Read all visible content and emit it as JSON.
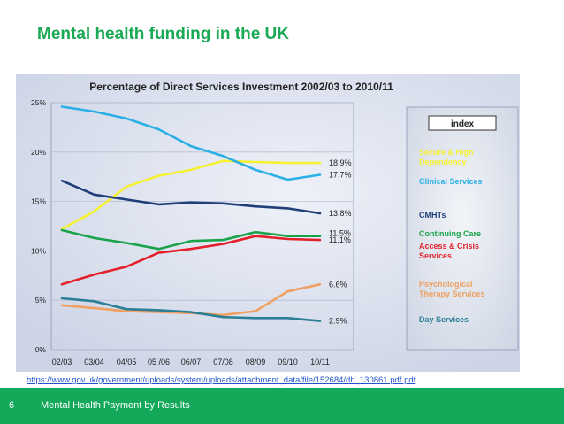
{
  "slide": {
    "title": "Mental health funding in the UK",
    "source_url": "https://www.gov.uk/government/uploads/system/uploads/attachment_data/file/152684/dh_130861.pdf.pdf",
    "page_number": "6",
    "footer_text": "Mental Health Payment by Results"
  },
  "chart_data": {
    "type": "line",
    "title": "Percentage of Direct Services Investment 2002/03 to 2010/11",
    "xlabel": "",
    "ylabel": "",
    "categories": [
      "02/03",
      "03/04",
      "04/05",
      "05 /06",
      "06/07",
      "07/08",
      "08/09",
      "09/10",
      "10/11"
    ],
    "ylim": [
      0,
      25
    ],
    "yticks": [
      "0%",
      "5%",
      "10%",
      "15%",
      "20%",
      "25%"
    ],
    "ytick_values": [
      0,
      5,
      10,
      15,
      20,
      25
    ],
    "legend_title": "index",
    "legend_position": "right",
    "series": [
      {
        "name": "Secure & High Dependency",
        "color": "#f5f032",
        "values": [
          12.2,
          14.0,
          16.5,
          17.6,
          18.2,
          19.1,
          19.0,
          18.9,
          18.9
        ],
        "end_label": "18.9%"
      },
      {
        "name": "Clinical Services",
        "color": "#2ab0e6",
        "values": [
          24.6,
          24.1,
          23.4,
          22.3,
          20.6,
          19.6,
          18.2,
          17.2,
          17.7
        ],
        "end_label": "17.7%"
      },
      {
        "name": "CMHTs",
        "color": "#1f3f7a",
        "values": [
          17.1,
          15.7,
          15.2,
          14.7,
          14.9,
          14.8,
          14.5,
          14.3,
          13.8
        ],
        "end_label": "13.8%"
      },
      {
        "name": "Continuing Care",
        "color": "#1aa34a",
        "values": [
          12.1,
          11.3,
          10.8,
          10.2,
          11.0,
          11.1,
          11.9,
          11.5,
          11.5
        ],
        "end_label": "11.5%"
      },
      {
        "name": "Access & Crisis Services",
        "color": "#e4212a",
        "values": [
          6.6,
          7.6,
          8.4,
          9.8,
          10.2,
          10.7,
          11.5,
          11.2,
          11.1
        ],
        "end_label": "11.1%"
      },
      {
        "name": "Psychological Therapy Services",
        "color": "#f0a060",
        "values": [
          4.5,
          4.2,
          3.9,
          3.8,
          3.7,
          3.5,
          3.9,
          5.9,
          6.6
        ],
        "end_label": "6.6%"
      },
      {
        "name": "Day Services",
        "color": "#2a7e96",
        "values": [
          5.2,
          4.9,
          4.1,
          4.0,
          3.8,
          3.3,
          3.2,
          3.2,
          2.9
        ],
        "end_label": "2.9%"
      }
    ]
  }
}
